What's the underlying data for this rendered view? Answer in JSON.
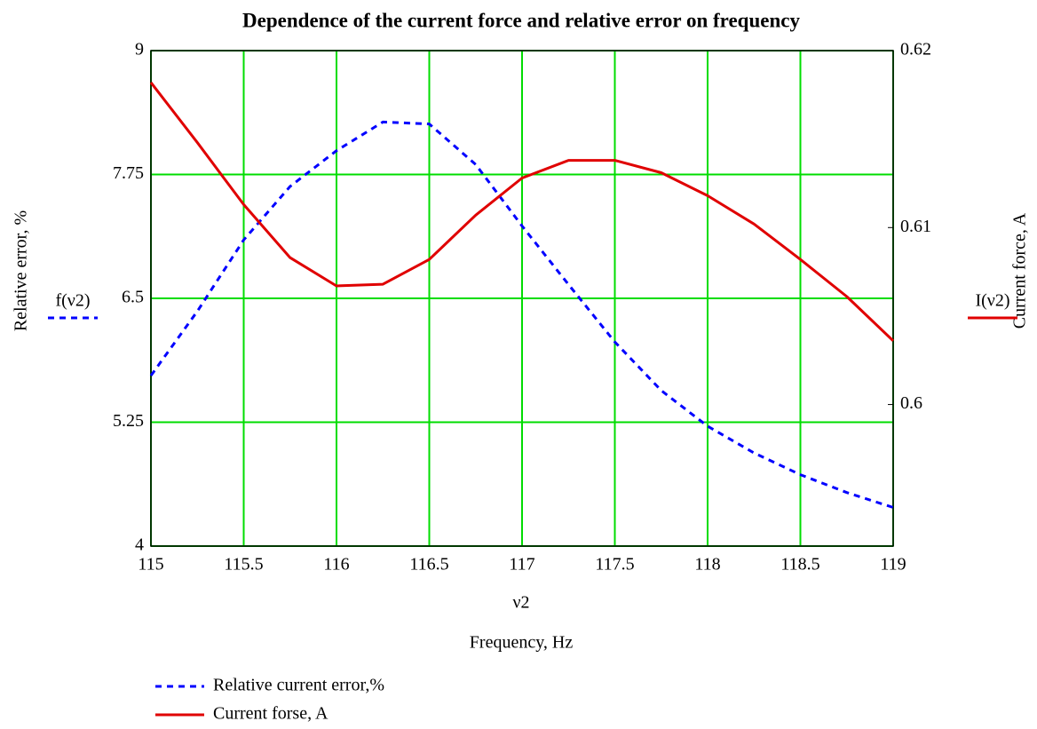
{
  "chart_data": {
    "type": "line",
    "title": "Dependence of the current force and relative error on frequency",
    "xlabel": "Frequency, Hz",
    "x_variable": "ν2",
    "ylabel": "Relative error, %",
    "y2label": "Current force, A",
    "x": [
      115,
      115.25,
      115.5,
      115.75,
      116,
      116.25,
      116.5,
      116.75,
      117,
      117.25,
      117.5,
      117.75,
      118,
      118.25,
      118.5,
      118.75,
      119
    ],
    "series": [
      {
        "name": "Relative current error,%",
        "trace_label": "f(ν2)",
        "color": "#0000ff",
        "dashed": true,
        "axis": "y",
        "values": [
          5.72,
          6.37,
          7.09,
          7.63,
          7.99,
          8.28,
          8.26,
          7.85,
          7.23,
          6.64,
          6.06,
          5.57,
          5.21,
          4.94,
          4.72,
          4.54,
          4.39
        ]
      },
      {
        "name": "Current forse, A",
        "trace_label": "I(ν2)",
        "color": "#e00000",
        "dashed": false,
        "axis": "y2",
        "values": [
          0.6182,
          0.6148,
          0.6113,
          0.6083,
          0.6067,
          0.6068,
          0.6082,
          0.6107,
          0.6128,
          0.6138,
          0.6138,
          0.6131,
          0.6118,
          0.6102,
          0.6082,
          0.6061,
          0.6036
        ]
      }
    ],
    "xlim": [
      115,
      119
    ],
    "xticks": [
      115,
      115.5,
      116,
      116.5,
      117,
      117.5,
      118,
      118.5,
      119
    ],
    "ylim": [
      4,
      9
    ],
    "yticks": [
      4,
      5.25,
      6.5,
      7.75,
      9
    ],
    "y2lim": [
      0.592,
      0.62
    ],
    "y2ticks": [
      0.6,
      0.61,
      0.62
    ],
    "grid": true,
    "grid_color": "#00dd00"
  }
}
